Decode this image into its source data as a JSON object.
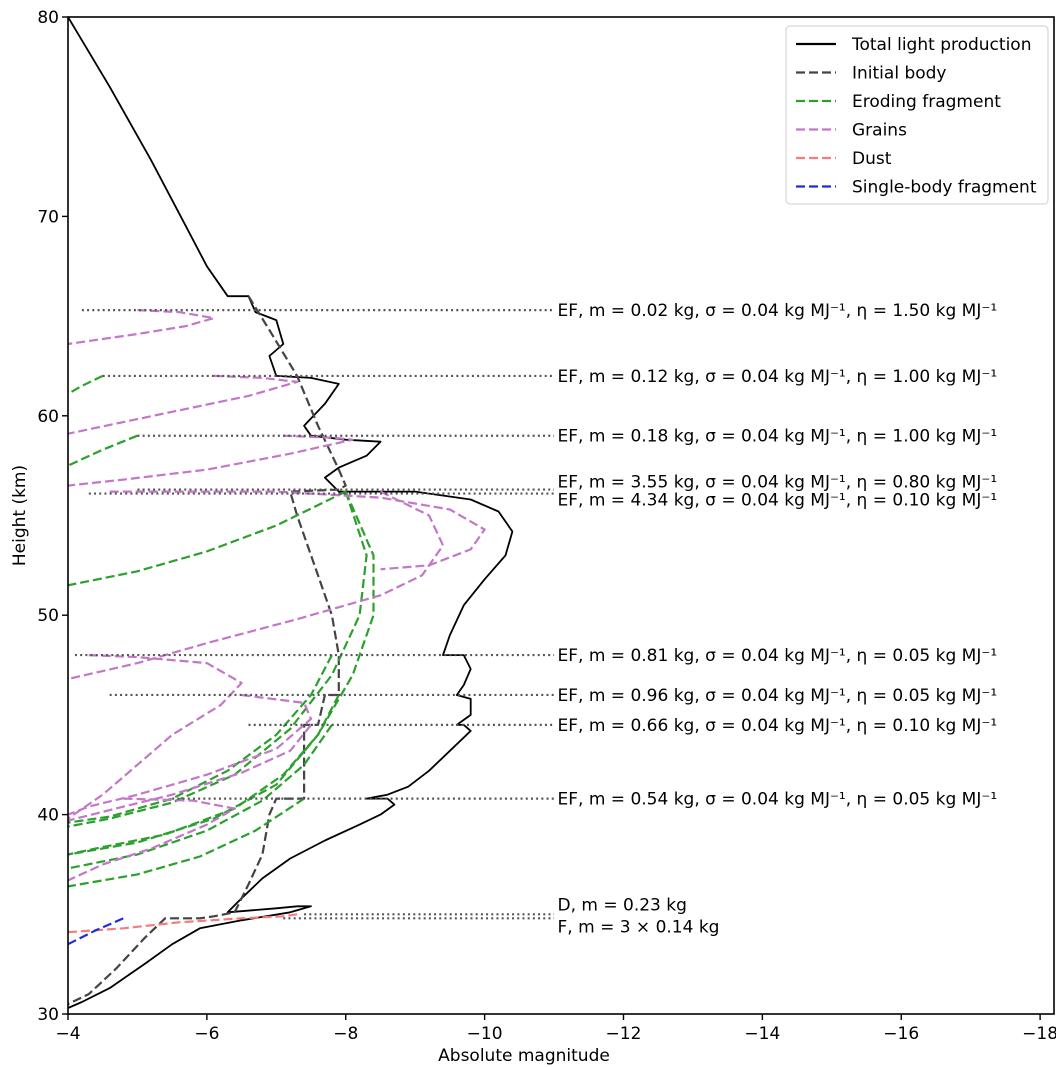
{
  "chart_data": {
    "type": "line",
    "xlabel": "Absolute magnitude",
    "ylabel": "Height (km)",
    "xlim": [
      -4,
      -18.2
    ],
    "ylim": [
      30,
      80
    ],
    "x_inverted": true,
    "xticks": [
      -4,
      -6,
      -8,
      -10,
      -12,
      -14,
      -16,
      -18
    ],
    "yticks": [
      30,
      40,
      50,
      60,
      70,
      80
    ],
    "xtick_labels": [
      "−4",
      "−6",
      "−8",
      "−10",
      "−12",
      "−14",
      "−16",
      "−18"
    ],
    "ytick_labels": [
      "30",
      "40",
      "50",
      "60",
      "70",
      "80"
    ],
    "grid": false,
    "legend_position": "top-right",
    "legend": [
      {
        "label": "Total light production",
        "color": "#000000",
        "dash": "solid"
      },
      {
        "label": "Initial body",
        "color": "#444444",
        "dash": "dashed"
      },
      {
        "label": "Eroding fragment",
        "color": "#2ca02c",
        "dash": "dashed"
      },
      {
        "label": "Grains",
        "color": "#c377c9",
        "dash": "dashed"
      },
      {
        "label": "Dust",
        "color": "#f47c7c",
        "dash": "dashed"
      },
      {
        "label": "Single-body fragment",
        "color": "#1f2be0",
        "dash": "dashed"
      }
    ],
    "series": [
      {
        "style": "total",
        "points": [
          [
            -4.0,
            80.0
          ],
          [
            -4.6,
            76.5
          ],
          [
            -5.2,
            72.8
          ],
          [
            -5.7,
            69.5
          ],
          [
            -6.0,
            67.5
          ],
          [
            -6.3,
            66.0
          ],
          [
            -6.6,
            66.0
          ],
          [
            -6.7,
            65.2
          ],
          [
            -7.0,
            64.8
          ],
          [
            -7.1,
            63.6
          ],
          [
            -6.9,
            63.0
          ],
          [
            -7.0,
            62.0
          ],
          [
            -7.5,
            61.9
          ],
          [
            -7.9,
            61.6
          ],
          [
            -7.7,
            60.6
          ],
          [
            -7.4,
            59.5
          ],
          [
            -7.5,
            59.0
          ],
          [
            -8.0,
            58.8
          ],
          [
            -8.5,
            58.7
          ],
          [
            -8.3,
            58.0
          ],
          [
            -7.9,
            57.4
          ],
          [
            -7.7,
            56.9
          ],
          [
            -7.9,
            56.2
          ],
          [
            -9.0,
            56.2
          ],
          [
            -9.8,
            55.8
          ],
          [
            -10.2,
            55.2
          ],
          [
            -10.4,
            54.2
          ],
          [
            -10.3,
            53.0
          ],
          [
            -10.0,
            51.8
          ],
          [
            -9.7,
            50.5
          ],
          [
            -9.5,
            49.0
          ],
          [
            -9.4,
            48.0
          ],
          [
            -9.7,
            48.0
          ],
          [
            -9.8,
            47.3
          ],
          [
            -9.7,
            46.5
          ],
          [
            -9.6,
            46.0
          ],
          [
            -9.8,
            45.8
          ],
          [
            -9.8,
            45.0
          ],
          [
            -9.6,
            44.5
          ],
          [
            -9.7,
            44.5
          ],
          [
            -9.8,
            44.2
          ],
          [
            -9.5,
            43.2
          ],
          [
            -9.2,
            42.2
          ],
          [
            -8.9,
            41.4
          ],
          [
            -8.6,
            41.0
          ],
          [
            -8.3,
            40.8
          ],
          [
            -8.6,
            40.8
          ],
          [
            -8.7,
            40.5
          ],
          [
            -8.5,
            40.0
          ],
          [
            -8.2,
            39.5
          ],
          [
            -7.7,
            38.7
          ],
          [
            -7.2,
            37.8
          ],
          [
            -6.8,
            36.8
          ],
          [
            -6.5,
            35.8
          ],
          [
            -6.3,
            35.1
          ],
          [
            -7.0,
            35.3
          ],
          [
            -7.3,
            35.4
          ],
          [
            -7.5,
            35.4
          ],
          [
            -7.2,
            35.1
          ],
          [
            -6.5,
            34.7
          ],
          [
            -5.9,
            34.3
          ],
          [
            -5.5,
            33.5
          ],
          [
            -5.1,
            32.5
          ],
          [
            -4.6,
            31.3
          ],
          [
            -4.2,
            30.6
          ],
          [
            -4.0,
            30.3
          ]
        ]
      },
      {
        "style": "initial",
        "points": [
          [
            -6.6,
            66.0
          ],
          [
            -6.9,
            64.3
          ],
          [
            -7.3,
            62.0
          ],
          [
            -7.6,
            59.5
          ],
          [
            -7.9,
            57.3
          ],
          [
            -8.0,
            56.5
          ],
          [
            -7.9,
            56.3
          ],
          [
            -7.2,
            56.2
          ],
          [
            -7.3,
            55.0
          ],
          [
            -7.6,
            52.0
          ],
          [
            -7.8,
            50.0
          ],
          [
            -7.9,
            48.0
          ],
          [
            -7.9,
            46.0
          ],
          [
            -7.7,
            46.0
          ],
          [
            -7.6,
            44.5
          ],
          [
            -7.4,
            44.5
          ],
          [
            -7.4,
            40.8
          ],
          [
            -7.0,
            40.8
          ],
          [
            -6.9,
            40.0
          ],
          [
            -6.8,
            38.0
          ],
          [
            -6.6,
            36.5
          ],
          [
            -6.4,
            35.1
          ],
          [
            -6.1,
            34.9
          ],
          [
            -5.9,
            34.8
          ],
          [
            -5.4,
            34.8
          ],
          [
            -5.1,
            33.8
          ],
          [
            -4.7,
            32.3
          ],
          [
            -4.3,
            31.0
          ],
          [
            -4.0,
            30.5
          ]
        ]
      },
      {
        "style": "eroding",
        "points": [
          [
            -4.5,
            62.0
          ],
          [
            -4.2,
            61.5
          ],
          [
            -4.0,
            61.1
          ]
        ]
      },
      {
        "style": "eroding",
        "points": [
          [
            -5.0,
            59.0
          ],
          [
            -4.5,
            58.3
          ],
          [
            -4.0,
            57.5
          ]
        ]
      },
      {
        "style": "eroding",
        "points": [
          [
            -8.0,
            56.2
          ],
          [
            -7.0,
            54.5
          ],
          [
            -6.0,
            53.2
          ],
          [
            -5.0,
            52.2
          ],
          [
            -4.0,
            51.5
          ]
        ]
      },
      {
        "style": "eroding",
        "points": [
          [
            -8.0,
            56.2
          ],
          [
            -8.3,
            53.0
          ],
          [
            -8.2,
            50.0
          ],
          [
            -7.8,
            47.0
          ],
          [
            -7.2,
            44.3
          ],
          [
            -6.4,
            42.0
          ],
          [
            -5.5,
            40.6
          ],
          [
            -4.6,
            39.8
          ],
          [
            -4.0,
            39.4
          ]
        ]
      },
      {
        "style": "eroding",
        "points": [
          [
            -7.8,
            48.0
          ],
          [
            -7.5,
            46.0
          ],
          [
            -7.0,
            44.0
          ],
          [
            -6.3,
            42.2
          ],
          [
            -5.5,
            40.8
          ],
          [
            -4.6,
            39.9
          ],
          [
            -4.0,
            39.6
          ]
        ]
      },
      {
        "style": "eroding",
        "points": [
          [
            -8.0,
            56.2
          ],
          [
            -8.4,
            53.0
          ],
          [
            -8.4,
            50.0
          ],
          [
            -8.1,
            47.0
          ],
          [
            -7.6,
            44.0
          ],
          [
            -7.0,
            41.5
          ],
          [
            -6.1,
            39.8
          ],
          [
            -5.0,
            38.6
          ],
          [
            -4.0,
            38.0
          ]
        ]
      },
      {
        "style": "eroding",
        "points": [
          [
            -7.9,
            46.0
          ],
          [
            -7.6,
            44.0
          ],
          [
            -7.1,
            42.0
          ],
          [
            -6.4,
            40.3
          ],
          [
            -5.4,
            39.0
          ],
          [
            -4.4,
            38.3
          ],
          [
            -4.0,
            38.0
          ]
        ]
      },
      {
        "style": "eroding",
        "points": [
          [
            -7.8,
            44.5
          ],
          [
            -7.4,
            42.5
          ],
          [
            -6.8,
            40.7
          ],
          [
            -6.0,
            39.2
          ],
          [
            -5.0,
            38.0
          ],
          [
            -4.0,
            37.3
          ]
        ]
      },
      {
        "style": "eroding",
        "points": [
          [
            -7.4,
            40.8
          ],
          [
            -6.7,
            39.2
          ],
          [
            -5.9,
            37.9
          ],
          [
            -5.0,
            37.0
          ],
          [
            -4.0,
            36.4
          ]
        ]
      },
      {
        "style": "grains",
        "points": [
          [
            -5.0,
            65.3
          ],
          [
            -5.6,
            65.2
          ],
          [
            -6.1,
            64.9
          ],
          [
            -5.7,
            64.5
          ],
          [
            -5.0,
            64.1
          ],
          [
            -4.0,
            63.6
          ]
        ]
      },
      {
        "style": "grains",
        "points": [
          [
            -6.1,
            62.0
          ],
          [
            -6.8,
            61.9
          ],
          [
            -7.3,
            61.7
          ],
          [
            -6.6,
            61.0
          ],
          [
            -5.5,
            60.2
          ],
          [
            -4.0,
            59.1
          ]
        ]
      },
      {
        "style": "grains",
        "points": [
          [
            -7.1,
            59.0
          ],
          [
            -7.8,
            58.9
          ],
          [
            -8.1,
            58.8
          ],
          [
            -7.2,
            58.1
          ],
          [
            -6.0,
            57.3
          ],
          [
            -4.8,
            56.8
          ],
          [
            -4.0,
            56.5
          ]
        ]
      },
      {
        "style": "grains",
        "points": [
          [
            -4.6,
            56.2
          ],
          [
            -7.0,
            56.2
          ],
          [
            -8.5,
            55.9
          ],
          [
            -9.5,
            55.3
          ],
          [
            -10.0,
            54.3
          ],
          [
            -9.8,
            53.3
          ],
          [
            -9.2,
            52.5
          ],
          [
            -8.5,
            52.3
          ]
        ]
      },
      {
        "style": "grains",
        "points": [
          [
            -8.5,
            56.2
          ],
          [
            -9.2,
            55.0
          ],
          [
            -9.4,
            53.5
          ],
          [
            -9.1,
            52.0
          ],
          [
            -8.5,
            51.0
          ],
          [
            -7.3,
            49.8
          ],
          [
            -6.0,
            48.6
          ],
          [
            -5.0,
            47.6
          ],
          [
            -4.0,
            46.8
          ]
        ]
      },
      {
        "style": "grains",
        "points": [
          [
            -4.3,
            48.0
          ],
          [
            -5.0,
            47.9
          ],
          [
            -6.0,
            47.6
          ],
          [
            -6.5,
            46.6
          ],
          [
            -6.2,
            45.5
          ],
          [
            -5.5,
            44.0
          ],
          [
            -5.0,
            42.5
          ],
          [
            -4.5,
            41.0
          ],
          [
            -4.0,
            39.8
          ]
        ]
      },
      {
        "style": "grains",
        "points": [
          [
            -6.5,
            46.0
          ],
          [
            -7.4,
            45.6
          ],
          [
            -7.5,
            44.8
          ],
          [
            -7.0,
            43.3
          ],
          [
            -6.0,
            42.0
          ],
          [
            -5.0,
            41.0
          ],
          [
            -4.3,
            40.4
          ],
          [
            -4.0,
            40.0
          ]
        ]
      },
      {
        "style": "grains",
        "points": [
          [
            -7.5,
            44.5
          ],
          [
            -7.2,
            43.2
          ],
          [
            -6.5,
            42.1
          ],
          [
            -5.5,
            41.0
          ],
          [
            -4.8,
            40.4
          ],
          [
            -4.0,
            39.7
          ]
        ]
      },
      {
        "style": "grains",
        "points": [
          [
            -4.8,
            40.8
          ],
          [
            -5.8,
            40.7
          ],
          [
            -6.4,
            40.3
          ],
          [
            -6.0,
            39.5
          ],
          [
            -5.2,
            38.3
          ],
          [
            -4.5,
            37.5
          ],
          [
            -4.0,
            36.7
          ]
        ]
      },
      {
        "style": "dust",
        "points": [
          [
            -4.0,
            34.1
          ],
          [
            -4.8,
            34.3
          ],
          [
            -5.6,
            34.6
          ],
          [
            -6.5,
            34.8
          ],
          [
            -7.1,
            34.9
          ],
          [
            -7.3,
            35.0
          ]
        ]
      },
      {
        "style": "single",
        "points": [
          [
            -4.0,
            33.5
          ],
          [
            -4.4,
            34.2
          ],
          [
            -4.8,
            34.8
          ]
        ]
      }
    ],
    "annotation_lines": [
      {
        "x1": -4.2,
        "x2": -11.0,
        "y": 65.3
      },
      {
        "x1": -4.5,
        "x2": -11.0,
        "y": 62.0
      },
      {
        "x1": -5.0,
        "x2": -11.0,
        "y": 59.0
      },
      {
        "x1": -5.0,
        "x2": -11.0,
        "y": 56.3
      },
      {
        "x1": -4.3,
        "x2": -11.0,
        "y": 56.1
      },
      {
        "x1": -4.1,
        "x2": -11.0,
        "y": 48.0
      },
      {
        "x1": -4.6,
        "x2": -11.0,
        "y": 46.0
      },
      {
        "x1": -6.6,
        "x2": -11.0,
        "y": 44.5
      },
      {
        "x1": -5.5,
        "x2": -11.0,
        "y": 40.8
      },
      {
        "x1": -7.4,
        "x2": -11.0,
        "y": 35.0
      },
      {
        "x1": -7.1,
        "x2": -11.0,
        "y": 34.8
      }
    ],
    "annotations": [
      {
        "y": 65.3,
        "text": "EF, m = 0.02 kg, σ = 0.04 kg MJ⁻¹, η = 1.50 kg MJ⁻¹"
      },
      {
        "y": 62.0,
        "text": "EF, m = 0.12 kg, σ = 0.04 kg MJ⁻¹, η = 1.00 kg MJ⁻¹"
      },
      {
        "y": 59.0,
        "text": "EF, m = 0.18 kg, σ = 0.04 kg MJ⁻¹, η = 1.00 kg MJ⁻¹"
      },
      {
        "y": 56.7,
        "text": "EF, m = 3.55 kg, σ = 0.04 kg MJ⁻¹, η = 0.80 kg MJ⁻¹"
      },
      {
        "y": 55.8,
        "text": "EF, m = 4.34 kg, σ = 0.04 kg MJ⁻¹, η = 0.10 kg MJ⁻¹"
      },
      {
        "y": 48.0,
        "text": "EF, m = 0.81 kg, σ = 0.04 kg MJ⁻¹, η = 0.05 kg MJ⁻¹"
      },
      {
        "y": 46.0,
        "text": "EF, m = 0.96 kg, σ = 0.04 kg MJ⁻¹, η = 0.05 kg MJ⁻¹"
      },
      {
        "y": 44.5,
        "text": "EF, m = 0.66 kg, σ = 0.04 kg MJ⁻¹, η = 0.10 kg MJ⁻¹"
      },
      {
        "y": 40.8,
        "text": "EF, m = 0.54 kg, σ = 0.04 kg MJ⁻¹, η = 0.05 kg MJ⁻¹"
      },
      {
        "y": 35.5,
        "text": "D, m = 0.23 kg"
      },
      {
        "y": 34.4,
        "text": "F, m = 3 × 0.14 kg"
      }
    ]
  }
}
